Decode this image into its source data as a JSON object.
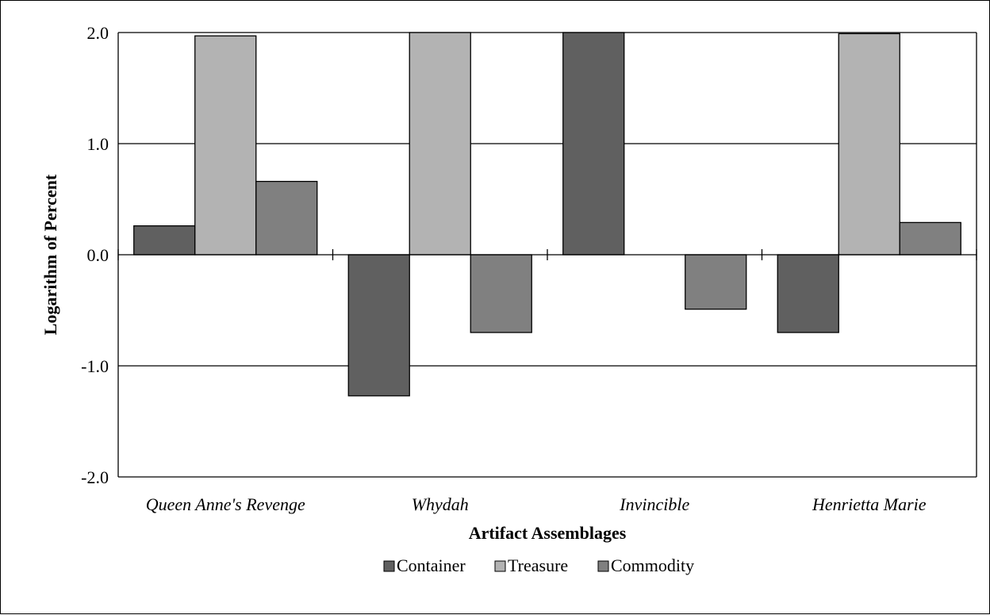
{
  "chart_data": {
    "type": "bar",
    "xlabel": "Artifact Assemblages",
    "ylabel": "Logarithm of Percent",
    "ylim": [
      -2.0,
      2.0
    ],
    "yticks": [
      "2.0",
      "1.0",
      "0.0",
      "-1.0",
      "-2.0"
    ],
    "ytick_values": [
      2.0,
      1.0,
      0.0,
      -1.0,
      -2.0
    ],
    "grid": true,
    "legend_position": "bottom",
    "categories": [
      "Queen Anne's Revenge",
      "Whydah",
      "Invincible",
      "Henrietta Marie"
    ],
    "series": [
      {
        "name": "Container",
        "color": "#606060",
        "values": [
          0.26,
          -1.27,
          2.0,
          -0.7
        ]
      },
      {
        "name": "Treasure",
        "color": "#b3b3b3",
        "values": [
          1.97,
          2.0,
          null,
          1.99
        ]
      },
      {
        "name": "Commodity",
        "color": "#808080",
        "values": [
          0.66,
          -0.7,
          -0.49,
          0.29
        ]
      }
    ]
  }
}
